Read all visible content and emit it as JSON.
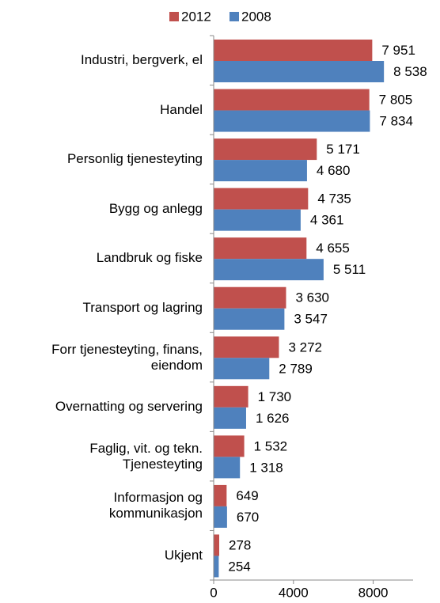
{
  "chart_data": {
    "type": "hbar",
    "categories": [
      "Industri, bergverk, el",
      "Handel",
      "Personlig tjenesteyting",
      "Bygg og anlegg",
      "Landbruk og fiske",
      "Transport og lagring",
      "Forr tjenesteyting, finans,\neiendom",
      "Overnatting og servering",
      "Faglig, vit. og tekn.\nTjenesteyting",
      "Informasjon og\nkommunikasjon",
      "Ukjent"
    ],
    "series": [
      {
        "name": "2012",
        "color": "#c0504d",
        "values": [
          7951,
          7805,
          5171,
          4735,
          4655,
          3630,
          3272,
          1730,
          1532,
          649,
          278
        ],
        "value_labels": [
          "7 951",
          "7 805",
          "5 171",
          "4 735",
          "4 655",
          "3 630",
          "3 272",
          "1 730",
          "1 532",
          "649",
          "278"
        ]
      },
      {
        "name": "2008",
        "color": "#4f81bd",
        "values": [
          8538,
          7834,
          4680,
          4361,
          5511,
          3547,
          2789,
          1626,
          1318,
          670,
          254
        ],
        "value_labels": [
          "8 538",
          "7 834",
          "4 680",
          "4 361",
          "5 511",
          "3 547",
          "2 789",
          "1 626",
          "1 318",
          "670",
          "254"
        ]
      }
    ],
    "xlim": [
      0,
      10000
    ],
    "xticks": [
      0,
      4000,
      8000
    ],
    "legend": "top"
  }
}
